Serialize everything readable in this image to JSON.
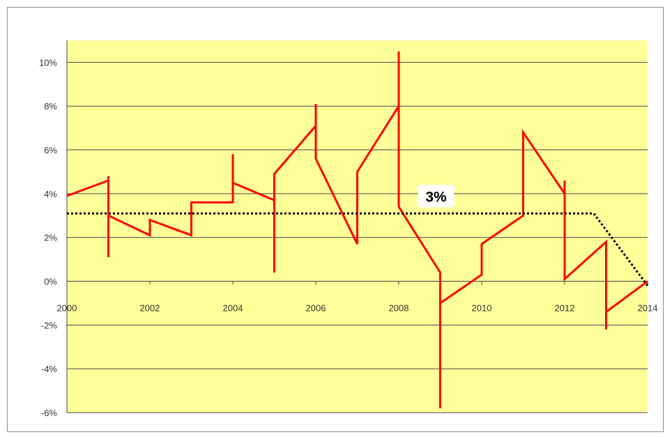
{
  "chart_data": {
    "type": "line",
    "title": "",
    "xlabel": "",
    "ylabel": "",
    "xlim": [
      2000,
      2014
    ],
    "ylim": [
      -6,
      11
    ],
    "x_ticks": [
      "2000",
      "2002",
      "2004",
      "2006",
      "2008",
      "2010",
      "2012",
      "2014"
    ],
    "y_ticks": [
      "-6%",
      "-4%",
      "-2%",
      "0%",
      "2%",
      "4%",
      "6%",
      "8%",
      "10%"
    ],
    "grid": true,
    "legend": "none",
    "series": [
      {
        "color": "#ff0000",
        "style": "solid",
        "points": [
          [
            2000.0,
            3.9
          ],
          [
            2001.0,
            4.6
          ],
          [
            2001.0,
            4.8
          ],
          [
            2001.0,
            1.1
          ],
          [
            2001.0,
            3.0
          ],
          [
            2002.0,
            2.1
          ],
          [
            2002.0,
            2.8
          ],
          [
            2003.0,
            2.1
          ],
          [
            2003.0,
            3.6
          ],
          [
            2004.0,
            3.6
          ],
          [
            2004.0,
            5.8
          ],
          [
            2004.0,
            4.5
          ],
          [
            2005.0,
            3.7
          ],
          [
            2005.0,
            0.4
          ],
          [
            2005.0,
            4.9
          ],
          [
            2006.0,
            7.1
          ],
          [
            2006.0,
            8.1
          ],
          [
            2006.0,
            5.6
          ],
          [
            2007.0,
            1.7
          ],
          [
            2007.0,
            5.0
          ],
          [
            2008.0,
            8.0
          ],
          [
            2008.0,
            10.5
          ],
          [
            2008.0,
            3.4
          ],
          [
            2009.0,
            0.4
          ],
          [
            2009.0,
            -5.8
          ],
          [
            2009.0,
            -1.0
          ],
          [
            2010.0,
            0.3
          ],
          [
            2010.0,
            1.7
          ],
          [
            2011.0,
            3.0
          ],
          [
            2011.0,
            6.8
          ],
          [
            2012.0,
            4.0
          ],
          [
            2012.0,
            4.6
          ],
          [
            2012.0,
            0.1
          ],
          [
            2013.0,
            1.8
          ],
          [
            2013.0,
            -2.2
          ],
          [
            2013.0,
            -1.4
          ],
          [
            2014.0,
            0.0
          ]
        ]
      },
      {
        "color": "#000000",
        "style": "dotted",
        "points": [
          [
            2000.0,
            3.1
          ],
          [
            2012.7,
            3.1
          ],
          [
            2014.0,
            -0.2
          ]
        ]
      }
    ],
    "annotations": [
      {
        "text": "3%",
        "x": 2008.9,
        "y": 3.7
      }
    ]
  },
  "colors": {
    "plot_background": "#ffff99",
    "gridline": "#444444",
    "series": "#ff0000",
    "reference": "#000000"
  }
}
